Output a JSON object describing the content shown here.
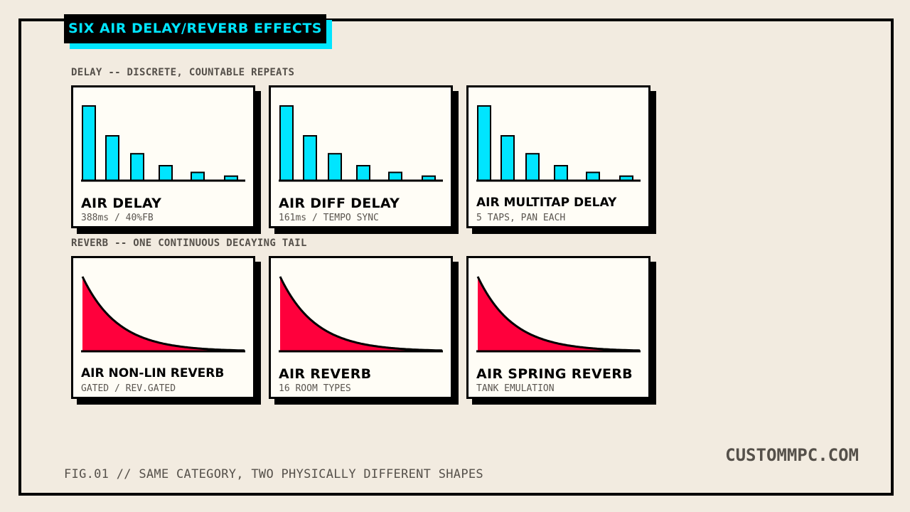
{
  "title": "SIX AIR DELAY/REVERB EFFECTS",
  "sections": {
    "delay": "DELAY -- DISCRETE, COUNTABLE REPEATS",
    "reverb": "REVERB -- ONE CONTINUOUS DECAYING TAIL"
  },
  "delay_cards": [
    {
      "name": "AIR DELAY",
      "desc": "388ms / 40%FB"
    },
    {
      "name": "AIR DIFF DELAY",
      "desc": "161ms / TEMPO SYNC"
    },
    {
      "name": "AIR MULTITAP DELAY",
      "desc": "5 TAPS, PAN EACH"
    }
  ],
  "reverb_cards": [
    {
      "name": "AIR NON-LIN REVERB",
      "desc": "GATED / REV.GATED"
    },
    {
      "name": "AIR REVERB",
      "desc": "16 ROOM TYPES"
    },
    {
      "name": "AIR SPRING REVERB",
      "desc": "TANK EMULATION"
    }
  ],
  "delay_repeat_levels": [
    1.0,
    0.6,
    0.36,
    0.2,
    0.11,
    0.06
  ],
  "colors": {
    "background": "#f2ebe0",
    "delay_bar": "#00e5ff",
    "reverb_fill": "#ff003c",
    "ink": "#000000",
    "muted_text": "#55504a"
  },
  "caption": "FIG.01 // SAME CATEGORY, TWO PHYSICALLY DIFFERENT SHAPES",
  "site": "CUSTOMMPC.COM"
}
